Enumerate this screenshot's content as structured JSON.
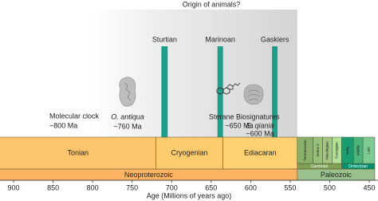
{
  "chart_data": {
    "type": "timeline",
    "title": "Origin of animals?",
    "xlabel": "Age (Millions of years ago)",
    "xlim": [
      917.2,
      438.9
    ],
    "xticks": [
      900,
      850,
      800,
      750,
      700,
      650,
      600,
      550,
      500,
      450
    ],
    "shade": [
      800,
      541
    ],
    "events": [
      {
        "name": "Sturtian",
        "range": [
          713,
          705
        ],
        "color": "#1aa08a"
      },
      {
        "name": "Marinoan",
        "range": [
          642,
          635
        ],
        "color": "#1aa08a"
      },
      {
        "name": "Gaskiers",
        "range": [
          573,
          566
        ],
        "color": "#1aa08a"
      }
    ],
    "periods": [
      {
        "name": "Tonian",
        "range": [
          1000,
          720
        ],
        "color": "#fcc46c"
      },
      {
        "name": "Cryogenian",
        "range": [
          720,
          635
        ],
        "color": "#fccb6e"
      },
      {
        "name": "Ediacaran",
        "range": [
          635,
          541
        ],
        "color": "#fdd072"
      },
      {
        "name": "Cambrian",
        "range": [
          541,
          485
        ],
        "color": "#7fa056"
      },
      {
        "name": "Ordovician",
        "range": [
          485,
          443
        ],
        "color": "#009270"
      }
    ],
    "epochs": [
      {
        "name": "Terreneuvian",
        "range": [
          541,
          521
        ],
        "color": "#8cb06c"
      },
      {
        "name": "Series 2",
        "range": [
          521,
          509
        ],
        "color": "#99c078"
      },
      {
        "name": "Miaolingian",
        "range": [
          509,
          497
        ],
        "color": "#a6c583"
      },
      {
        "name": "Furongian",
        "range": [
          497,
          485
        ],
        "color": "#b3e095"
      },
      {
        "name": "Early",
        "range": [
          485,
          470
        ],
        "color": "#1a9d6f"
      },
      {
        "name": "Middle",
        "range": [
          470,
          458
        ],
        "color": "#4db47e"
      },
      {
        "name": "Late",
        "range": [
          458,
          443
        ],
        "color": "#7fca93"
      }
    ],
    "eras": [
      {
        "name": "Neoproterozoic",
        "range": [
          1000,
          541
        ],
        "color": "#fdb462"
      },
      {
        "name": "Paleozoic",
        "range": [
          541,
          443
        ],
        "color": "#99c08d"
      }
    ],
    "annotations": [
      {
        "lines": [
          "Molecular clock",
          "~800 Ma"
        ]
      },
      {
        "lines": [
          "O. antiqua",
          "~760 Ma"
        ]
      },
      {
        "lines": [
          "Sterane Biosignatures",
          "~650 Ma"
        ]
      },
      {
        "lines": [
          "E. qiania",
          "~600 Ma"
        ]
      }
    ]
  }
}
